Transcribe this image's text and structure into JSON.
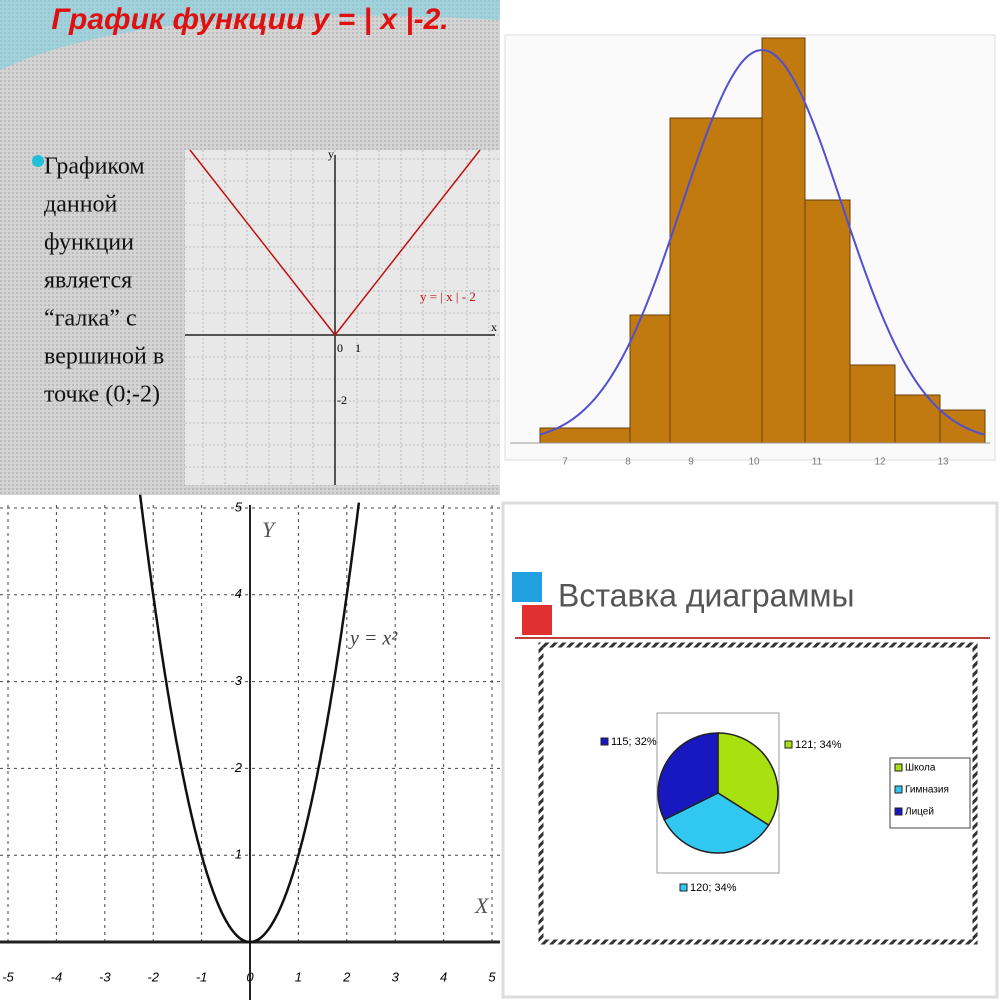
{
  "panel1": {
    "title": "График функции y = | x |-2.",
    "text": [
      "Графиком",
      "данной",
      "функции",
      "является",
      "“галка” с",
      "вершиной в",
      "точке (0;-2)"
    ],
    "graph": {
      "y_label": "y",
      "x_label": "x",
      "origin": "0",
      "one": "1",
      "minus_two": "-2",
      "formula": "y = | x | - 2"
    }
  },
  "panel2": {
    "x_labels": [
      "7",
      "8",
      "9",
      "10",
      "11",
      "12",
      "13"
    ]
  },
  "panel3": {
    "xticks": [
      -5,
      -4,
      -3,
      -2,
      -1,
      0,
      1,
      2,
      3,
      4,
      5
    ],
    "yticks": [
      1,
      2,
      3,
      4,
      5
    ],
    "y_label": "Y",
    "x_label": "X",
    "formula": "y = x²"
  },
  "panel4": {
    "title": "Вставка диаграммы",
    "pie": {
      "categories": [
        "Школа",
        "Гимназия",
        "Лицей"
      ],
      "values": [
        121,
        120,
        115
      ],
      "value_labels": [
        "121; 34%",
        "120; 34%",
        "115; 32%"
      ],
      "colors": [
        "#a8e010",
        "#30c8f0",
        "#1818c0"
      ]
    }
  }
}
